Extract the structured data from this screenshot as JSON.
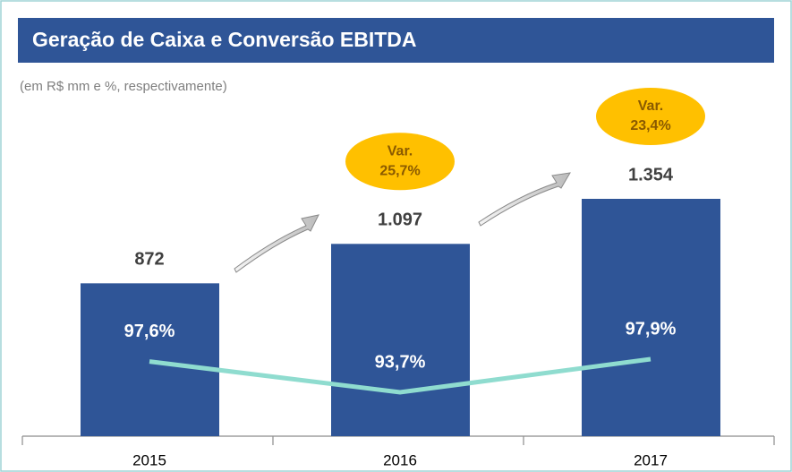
{
  "chart_data": {
    "type": "bar-line",
    "title": "Geração de Caixa e Conversão EBITDA",
    "subtitle": "(em R$ mm e %, respectivamente)",
    "categories": [
      "2015",
      "2016",
      "2017"
    ],
    "series": [
      {
        "type": "bar",
        "color": "#2f5597",
        "values": [
          872,
          1097,
          1354
        ],
        "value_labels": [
          "872",
          "1.097",
          "1.354"
        ]
      },
      {
        "type": "line",
        "color": "#8fdccf",
        "values": [
          97.6,
          93.7,
          97.9
        ],
        "value_labels": [
          "97,6%",
          "93,7%",
          "97,9%"
        ]
      }
    ],
    "annotations": [
      [
        "Var.",
        "25,7%"
      ],
      [
        "Var.",
        "23,4%"
      ]
    ]
  }
}
